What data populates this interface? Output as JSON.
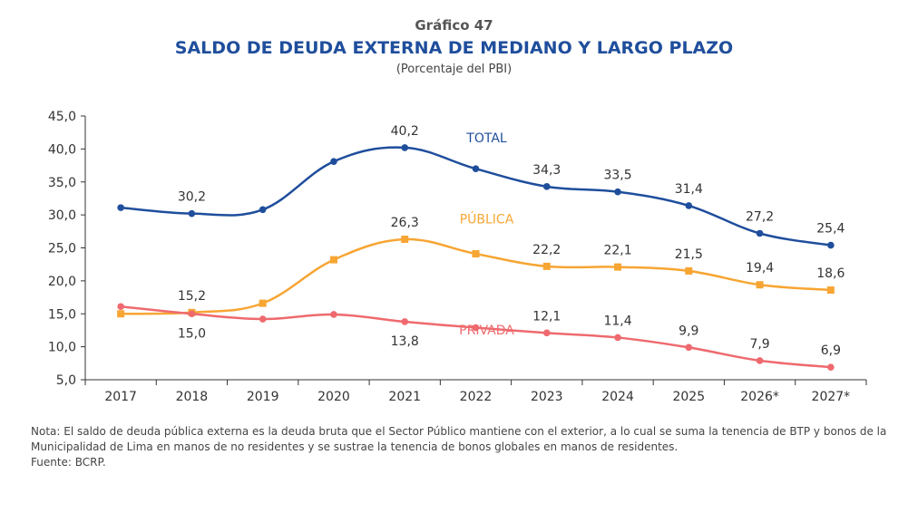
{
  "header": {
    "label": "Gráfico 47",
    "title": "SALDO DE DEUDA EXTERNA DE MEDIANO Y LARGO PLAZO",
    "subtitle": "(Porcentaje del PBI)"
  },
  "chart_data": {
    "type": "line",
    "title": "SALDO DE DEUDA EXTERNA DE MEDIANO Y LARGO PLAZO",
    "subtitle": "(Porcentaje del PBI)",
    "xlabel": "",
    "ylabel": "",
    "categories": [
      "2017",
      "2018",
      "2019",
      "2020",
      "2021",
      "2022",
      "2023",
      "2024",
      "2025",
      "2026*",
      "2027*"
    ],
    "ylim": [
      5.0,
      45.0
    ],
    "yticks": [
      "5,0",
      "10,0",
      "15,0",
      "20,0",
      "25,0",
      "30,0",
      "35,0",
      "40,0",
      "45,0"
    ],
    "ytick_values": [
      5,
      10,
      15,
      20,
      25,
      30,
      35,
      40,
      45
    ],
    "grid": false,
    "series": [
      {
        "name": "TOTAL",
        "color": "#1f4e9c",
        "marker": "circle",
        "values": [
          31.1,
          30.2,
          30.8,
          38.1,
          40.2,
          37.0,
          34.3,
          33.5,
          31.4,
          27.2,
          25.4
        ],
        "labels": [
          null,
          "30,2",
          null,
          null,
          "40,2",
          null,
          "34,3",
          "33,5",
          "31,4",
          "27,2",
          "25,4"
        ],
        "label_position": "above"
      },
      {
        "name": "PÚBLICA",
        "color": "#f7a533",
        "marker": "square",
        "values": [
          15.0,
          15.2,
          16.6,
          23.2,
          26.3,
          24.1,
          22.2,
          22.1,
          21.5,
          19.4,
          18.6
        ],
        "labels": [
          null,
          "15,2",
          null,
          null,
          "26,3",
          null,
          "22,2",
          "22,1",
          "21,5",
          "19,4",
          "18,6"
        ],
        "label_position": "above"
      },
      {
        "name": "PRIVADA",
        "color": "#ee6a6e",
        "marker": "circle",
        "values": [
          16.1,
          15.0,
          14.2,
          14.9,
          13.8,
          12.9,
          12.1,
          11.4,
          9.9,
          7.9,
          6.9
        ],
        "labels": [
          null,
          "15,0",
          null,
          null,
          "13,8",
          null,
          "12,1",
          "11,4",
          "9,9",
          "7,9",
          "6,9"
        ],
        "label_position": "mixed"
      }
    ],
    "series_labels": [
      {
        "text": "TOTAL",
        "color": "#1f4e9c",
        "near": "2022",
        "value": 41.0
      },
      {
        "text": "PÚBLICA",
        "color": "#f7a533",
        "near": "2022",
        "value": 28.7
      },
      {
        "text": "PRIVADA",
        "color": "#ee6a6e",
        "near": "2022",
        "value": 11.9
      }
    ],
    "legend": "inline"
  },
  "footer": {
    "note_line1": "Nota: El saldo de deuda pública externa es la deuda bruta que el Sector Público mantiene con el exterior, a lo cual se suma la tenencia de BTP y bonos de la",
    "note_line2": "Municipalidad de Lima en manos de no residentes y se sustrae la tenencia de bonos globales en manos de residentes.",
    "source": "Fuente: BCRP."
  }
}
